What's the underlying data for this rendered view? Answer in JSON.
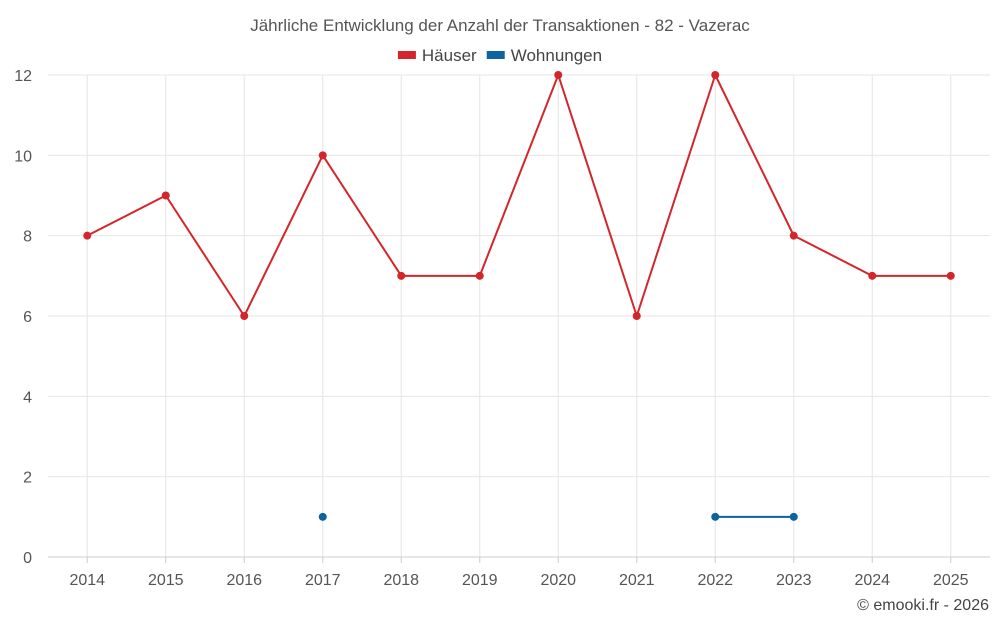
{
  "chart_data": {
    "type": "line",
    "title": "Jährliche Entwicklung der Anzahl der Transaktionen - 82 - Vazerac",
    "xlabel": "",
    "ylabel": "",
    "categories": [
      "2014",
      "2015",
      "2016",
      "2017",
      "2018",
      "2019",
      "2020",
      "2021",
      "2022",
      "2023",
      "2024",
      "2025"
    ],
    "ylim": [
      0,
      12
    ],
    "yticks": [
      0,
      2,
      4,
      6,
      8,
      10,
      12
    ],
    "grid": true,
    "legend": "top-center",
    "series": [
      {
        "name": "Häuser",
        "color": "#d3262b",
        "values": [
          8,
          9,
          6,
          10,
          7,
          7,
          12,
          6,
          12,
          8,
          7,
          7
        ]
      },
      {
        "name": "Wohnungen",
        "color": "#0b63a0",
        "values": [
          null,
          null,
          null,
          1,
          null,
          null,
          null,
          null,
          1,
          1,
          null,
          null
        ]
      }
    ]
  },
  "credit": "© emooki.fr - 2026"
}
